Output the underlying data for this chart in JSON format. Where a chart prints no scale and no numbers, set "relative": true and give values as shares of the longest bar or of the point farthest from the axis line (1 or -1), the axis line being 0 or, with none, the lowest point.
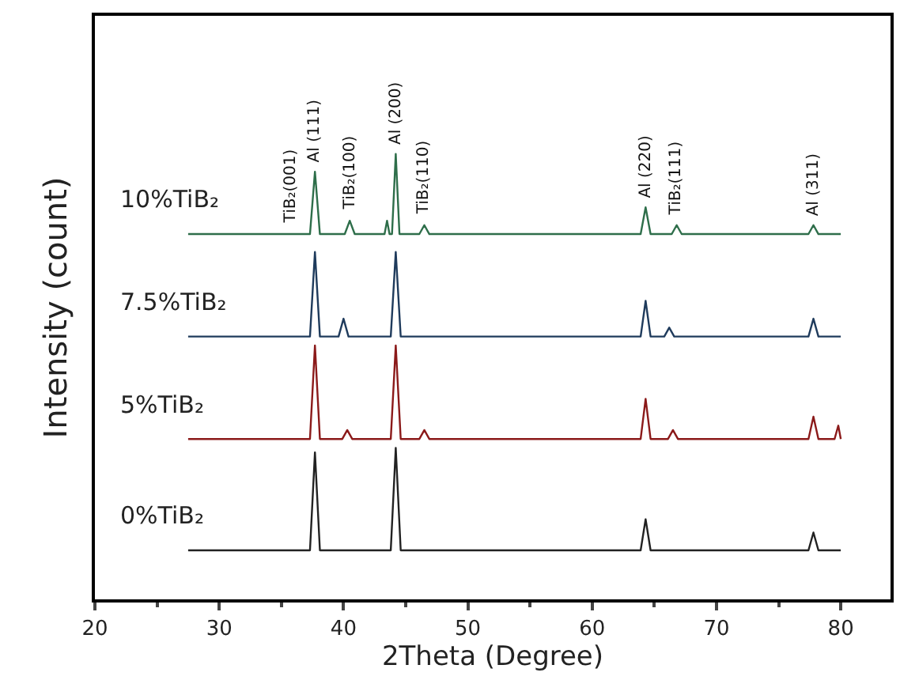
{
  "chart_data": {
    "type": "line",
    "relative": true,
    "xlabel": "2Theta (Degree)",
    "ylabel": "Intensity (count)",
    "xlim": [
      20,
      84
    ],
    "xticks": [
      20,
      30,
      40,
      50,
      60,
      70,
      80
    ],
    "tick_labels": "x",
    "legend": false,
    "marker": "none",
    "line_style": "solid",
    "series": [
      {
        "name": "0%TiB₂",
        "color": "#222222",
        "x": [
          27.5,
          37.3,
          37.7,
          38.1,
          43.8,
          44.2,
          44.6,
          63.9,
          64.3,
          64.7,
          77.4,
          77.8,
          78.2,
          80
        ],
        "values": [
          0.11,
          0.11,
          0.33,
          0.11,
          0.11,
          0.34,
          0.11,
          0.11,
          0.18,
          0.11,
          0.11,
          0.15,
          0.11,
          0.11
        ]
      },
      {
        "name": "5%TiB₂",
        "color": "#8b1a1a",
        "x": [
          27.5,
          37.3,
          37.7,
          38.1,
          39.9,
          40.3,
          40.7,
          43.8,
          44.2,
          44.6,
          46.1,
          46.5,
          46.9,
          63.9,
          64.3,
          64.7,
          66.1,
          66.5,
          66.9,
          77.4,
          77.8,
          78.2,
          79.5,
          79.8,
          80
        ],
        "values": [
          0.36,
          0.36,
          0.57,
          0.36,
          0.36,
          0.38,
          0.36,
          0.36,
          0.57,
          0.36,
          0.36,
          0.38,
          0.36,
          0.36,
          0.45,
          0.36,
          0.36,
          0.38,
          0.36,
          0.36,
          0.41,
          0.36,
          0.36,
          0.39,
          0.36
        ]
      },
      {
        "name": "7.5%TiB₂",
        "color": "#1f3b5c",
        "x": [
          27.5,
          37.3,
          37.7,
          38.1,
          39.6,
          40.0,
          40.4,
          43.8,
          44.2,
          44.6,
          63.9,
          64.3,
          64.7,
          65.8,
          66.2,
          66.6,
          77.4,
          77.8,
          78.2,
          80
        ],
        "values": [
          0.59,
          0.59,
          0.78,
          0.59,
          0.59,
          0.63,
          0.59,
          0.59,
          0.78,
          0.59,
          0.59,
          0.67,
          0.59,
          0.59,
          0.61,
          0.59,
          0.59,
          0.63,
          0.59,
          0.59
        ]
      },
      {
        "name": "10%TiB₂",
        "color": "#2e6e4a",
        "x": [
          27.5,
          37.3,
          37.7,
          38.1,
          40.1,
          40.5,
          40.9,
          43.3,
          43.5,
          43.7,
          43.9,
          44.2,
          44.5,
          46.1,
          46.5,
          46.9,
          63.9,
          64.3,
          64.7,
          66.4,
          66.8,
          67.2,
          77.4,
          77.8,
          78.2,
          80
        ],
        "values": [
          0.82,
          0.82,
          0.96,
          0.82,
          0.82,
          0.85,
          0.82,
          0.82,
          0.85,
          0.82,
          0.82,
          1.0,
          0.82,
          0.82,
          0.84,
          0.82,
          0.82,
          0.88,
          0.82,
          0.82,
          0.84,
          0.82,
          0.82,
          0.84,
          0.82,
          0.82
        ]
      }
    ],
    "annotations": [
      {
        "text": "TiB₂(001)",
        "x": 35.8,
        "y": 0.82
      },
      {
        "text": "Al (111)",
        "x": 37.7,
        "y": 0.96
      },
      {
        "text": "TiB₂(100)",
        "x": 40.5,
        "y": 0.85
      },
      {
        "text": "Al (200)",
        "x": 44.2,
        "y": 1.0
      },
      {
        "text": "TiB₂(110)",
        "x": 46.5,
        "y": 0.84
      },
      {
        "text": "Al (220)",
        "x": 64.3,
        "y": 0.88
      },
      {
        "text": "TiB₂(111)",
        "x": 66.8,
        "y": 0.84
      },
      {
        "text": "Al (311)",
        "x": 77.8,
        "y": 0.84
      }
    ]
  }
}
